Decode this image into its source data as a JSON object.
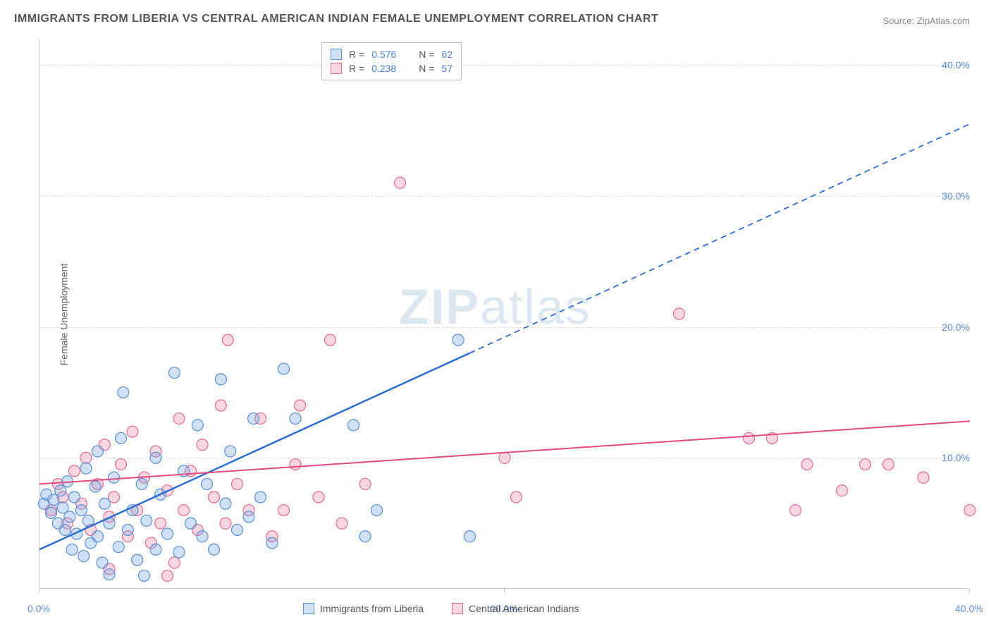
{
  "title": "IMMIGRANTS FROM LIBERIA VS CENTRAL AMERICAN INDIAN FEMALE UNEMPLOYMENT CORRELATION CHART",
  "source_label": "Source: ",
  "source_name": "ZipAtlas.com",
  "ylabel": "Female Unemployment",
  "watermark": {
    "prefix": "ZIP",
    "suffix": "atlas"
  },
  "chart": {
    "type": "scatter",
    "xlim": [
      0,
      40
    ],
    "ylim": [
      0,
      42
    ],
    "yticks": [
      10,
      20,
      30,
      40
    ],
    "ytick_labels": [
      "10.0%",
      "20.0%",
      "30.0%",
      "40.0%"
    ],
    "xticks": [
      0,
      20,
      40
    ],
    "xtick_labels": [
      "0.0%",
      "20.0%",
      "40.0%"
    ],
    "background_color": "#ffffff",
    "grid_color": "#dddddd",
    "axis_color": "#cccccc",
    "marker_radius": 8,
    "marker_stroke_width": 1.2,
    "series": [
      {
        "name": "Immigrants from Liberia",
        "fill": "rgba(120,165,225,0.35)",
        "stroke": "#5b8fd6",
        "r_label": "R = ",
        "r_value": "0.576",
        "n_label": "N = ",
        "n_value": "62",
        "trend": {
          "x1": 0,
          "y1": 3.0,
          "x2": 18.5,
          "y2": 18.0,
          "stroke": "#2d6cd0",
          "width": 2.5,
          "dash_ext_x2": 40,
          "dash_ext_y2": 35.5
        },
        "points": [
          [
            0.2,
            6.5
          ],
          [
            0.3,
            7.2
          ],
          [
            0.5,
            5.8
          ],
          [
            0.6,
            6.8
          ],
          [
            0.8,
            5.0
          ],
          [
            0.9,
            7.5
          ],
          [
            1.0,
            6.2
          ],
          [
            1.1,
            4.5
          ],
          [
            1.2,
            8.2
          ],
          [
            1.3,
            5.5
          ],
          [
            1.4,
            3.0
          ],
          [
            1.5,
            7.0
          ],
          [
            1.6,
            4.2
          ],
          [
            1.8,
            6.0
          ],
          [
            1.9,
            2.5
          ],
          [
            2.0,
            9.2
          ],
          [
            2.1,
            5.2
          ],
          [
            2.2,
            3.5
          ],
          [
            2.4,
            7.8
          ],
          [
            2.5,
            4.0
          ],
          [
            2.5,
            10.5
          ],
          [
            2.7,
            2.0
          ],
          [
            2.8,
            6.5
          ],
          [
            3.0,
            1.1
          ],
          [
            3.0,
            5.0
          ],
          [
            3.2,
            8.5
          ],
          [
            3.4,
            3.2
          ],
          [
            3.5,
            11.5
          ],
          [
            3.6,
            15.0
          ],
          [
            3.8,
            4.5
          ],
          [
            4.0,
            6.0
          ],
          [
            4.2,
            2.2
          ],
          [
            4.4,
            8.0
          ],
          [
            4.5,
            1.0
          ],
          [
            4.6,
            5.2
          ],
          [
            5.0,
            3.0
          ],
          [
            5.0,
            10.0
          ],
          [
            5.2,
            7.2
          ],
          [
            5.5,
            4.2
          ],
          [
            5.8,
            16.5
          ],
          [
            6.0,
            2.8
          ],
          [
            6.2,
            9.0
          ],
          [
            6.5,
            5.0
          ],
          [
            6.8,
            12.5
          ],
          [
            7.0,
            4.0
          ],
          [
            7.2,
            8.0
          ],
          [
            7.5,
            3.0
          ],
          [
            7.8,
            16.0
          ],
          [
            8.0,
            6.5
          ],
          [
            8.2,
            10.5
          ],
          [
            8.5,
            4.5
          ],
          [
            9.0,
            5.5
          ],
          [
            9.2,
            13.0
          ],
          [
            9.5,
            7.0
          ],
          [
            10.0,
            3.5
          ],
          [
            10.5,
            16.8
          ],
          [
            11.0,
            13.0
          ],
          [
            13.5,
            12.5
          ],
          [
            14.0,
            4.0
          ],
          [
            14.5,
            6.0
          ],
          [
            18.0,
            19.0
          ],
          [
            18.5,
            4.0
          ]
        ]
      },
      {
        "name": "Central American Indians",
        "fill": "rgba(235,140,170,0.35)",
        "stroke": "#e06b94",
        "r_label": "R = ",
        "r_value": "0.238",
        "n_label": "N = ",
        "n_value": "57",
        "trend": {
          "x1": 0,
          "y1": 8.0,
          "x2": 40,
          "y2": 12.8,
          "stroke": "#e04a7e",
          "width": 2,
          "dash_ext_x2": null
        },
        "points": [
          [
            0.5,
            6.0
          ],
          [
            0.8,
            8.0
          ],
          [
            1.0,
            7.0
          ],
          [
            1.2,
            5.0
          ],
          [
            1.5,
            9.0
          ],
          [
            1.8,
            6.5
          ],
          [
            2.0,
            10.0
          ],
          [
            2.2,
            4.5
          ],
          [
            2.5,
            8.0
          ],
          [
            2.8,
            11.0
          ],
          [
            3.0,
            5.5
          ],
          [
            3.2,
            7.0
          ],
          [
            3.5,
            9.5
          ],
          [
            3.8,
            4.0
          ],
          [
            4.0,
            12.0
          ],
          [
            4.2,
            6.0
          ],
          [
            4.5,
            8.5
          ],
          [
            4.8,
            3.5
          ],
          [
            5.0,
            10.5
          ],
          [
            5.2,
            5.0
          ],
          [
            5.5,
            7.5
          ],
          [
            5.8,
            2.0
          ],
          [
            6.0,
            13.0
          ],
          [
            6.2,
            6.0
          ],
          [
            6.5,
            9.0
          ],
          [
            6.8,
            4.5
          ],
          [
            7.0,
            11.0
          ],
          [
            7.5,
            7.0
          ],
          [
            7.8,
            14.0
          ],
          [
            8.0,
            5.0
          ],
          [
            8.1,
            19.0
          ],
          [
            8.5,
            8.0
          ],
          [
            9.0,
            6.0
          ],
          [
            9.5,
            13.0
          ],
          [
            10.0,
            4.0
          ],
          [
            10.5,
            6.0
          ],
          [
            11.0,
            9.5
          ],
          [
            11.2,
            14.0
          ],
          [
            12.0,
            7.0
          ],
          [
            12.5,
            19.0
          ],
          [
            13.0,
            5.0
          ],
          [
            14.0,
            8.0
          ],
          [
            15.5,
            31.0
          ],
          [
            20.0,
            10.0
          ],
          [
            20.5,
            7.0
          ],
          [
            27.5,
            21.0
          ],
          [
            30.5,
            11.5
          ],
          [
            31.5,
            11.5
          ],
          [
            32.5,
            6.0
          ],
          [
            33.0,
            9.5
          ],
          [
            34.5,
            7.5
          ],
          [
            35.5,
            9.5
          ],
          [
            36.5,
            9.5
          ],
          [
            38.0,
            8.5
          ],
          [
            40.0,
            6.0
          ],
          [
            5.5,
            1.0
          ],
          [
            3.0,
            1.5
          ]
        ]
      }
    ],
    "legend_bottom": [
      {
        "label": "Immigrants from Liberia"
      },
      {
        "label": "Central American Indians"
      }
    ]
  }
}
